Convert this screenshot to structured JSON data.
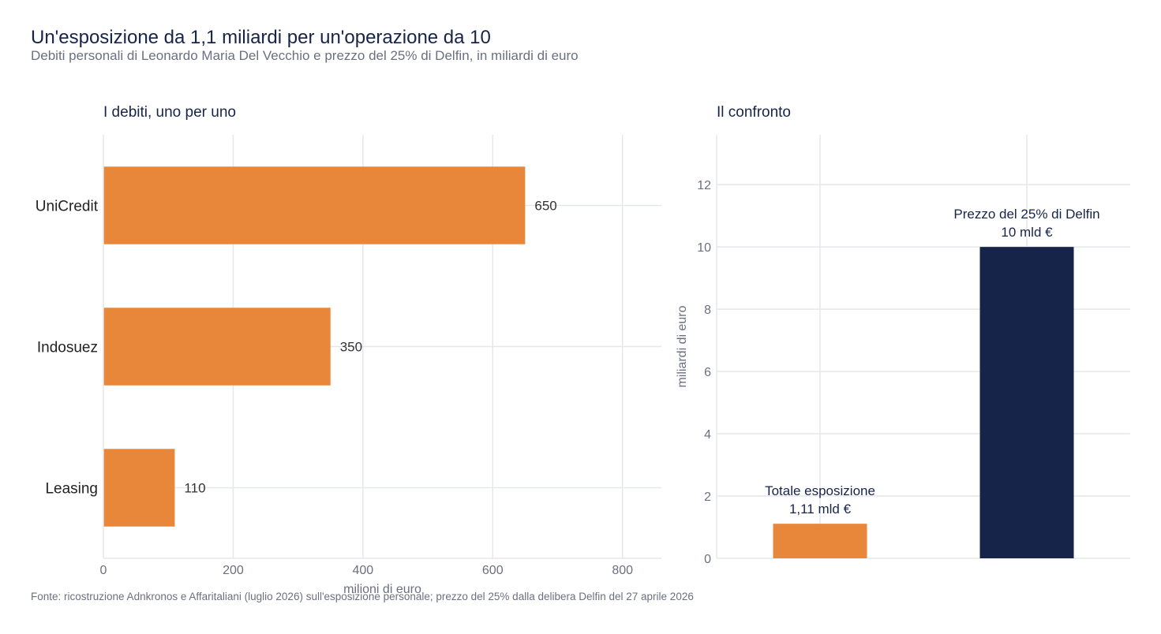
{
  "header": {
    "title": "Un'esposizione da 1,1 miliardi per un'operazione da 10",
    "subtitle": "Debiti personali di Leonardo Maria Del Vecchio e prezzo del 25% di Delfin, in miliardi di euro"
  },
  "footer": {
    "source": "Fonte: ricostruzione Adnkronos e Affaritaliani (luglio 2026) sull'esposizione personale; prezzo del 25% dalla delibera Delfin del 27 aprile 2026"
  },
  "chart_data": [
    {
      "type": "bar",
      "orientation": "horizontal",
      "title": "I debiti, uno per uno",
      "categories": [
        "UniCredit",
        "Indosuez",
        "Leasing"
      ],
      "values": [
        650,
        350,
        110
      ],
      "value_labels": [
        "650",
        "350",
        "110"
      ],
      "xlabel": "milioni di euro",
      "ylabel": "",
      "xlim": [
        0,
        860
      ],
      "x_ticks": [
        0,
        200,
        400,
        600,
        800
      ],
      "x_tick_labels": [
        "0",
        "200",
        "400",
        "600",
        "800"
      ],
      "grid": true,
      "colors": {
        "bar": "#e8873a"
      }
    },
    {
      "type": "bar",
      "orientation": "vertical",
      "title": "Il confronto",
      "categories": [
        "Totale esposizione",
        "Prezzo del 25% di Delfin"
      ],
      "values": [
        1.11,
        10
      ],
      "value_labels": [
        "1,11 mld €",
        "10 mld €"
      ],
      "xlabel": "",
      "ylabel": "miliardi di euro",
      "ylim": [
        0,
        13.6
      ],
      "y_ticks": [
        0,
        2,
        4,
        6,
        8,
        10,
        12
      ],
      "y_tick_labels": [
        "0",
        "2",
        "4",
        "6",
        "8",
        "10",
        "12"
      ],
      "grid": true,
      "colors": [
        "#e8873a",
        "#17244a"
      ]
    }
  ],
  "colors": {
    "title": "#17244a",
    "muted": "#6b7080",
    "grid": "#e6e7ec",
    "value_text": "#333333",
    "annotation_text": "#17244a"
  }
}
